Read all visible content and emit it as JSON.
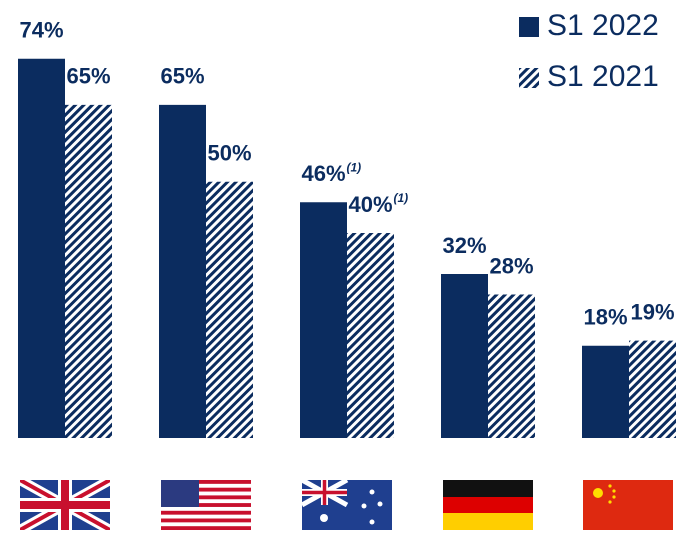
{
  "chart_data": {
    "type": "bar",
    "categories": [
      null,
      null,
      null,
      null,
      null
    ],
    "series": [
      {
        "name": "S1 2022",
        "color": "#0b2c5f",
        "pattern": "solid",
        "values": [
          74,
          65,
          46,
          32,
          18
        ],
        "value_labels": [
          "74%",
          "65%",
          "46%",
          "32%",
          "18%"
        ],
        "footnotes": [
          null,
          null,
          "(1)",
          null,
          null
        ]
      },
      {
        "name": "S1 2021",
        "color": "#0b2c5f",
        "pattern": "hatch",
        "values": [
          65,
          50,
          40,
          28,
          19
        ],
        "value_labels": [
          "65%",
          "50%",
          "40%",
          "28%",
          "19%"
        ],
        "footnotes": [
          null,
          null,
          "(1)",
          null,
          null
        ]
      }
    ],
    "ylim": [
      0,
      80
    ],
    "legend": "top-right"
  }
}
